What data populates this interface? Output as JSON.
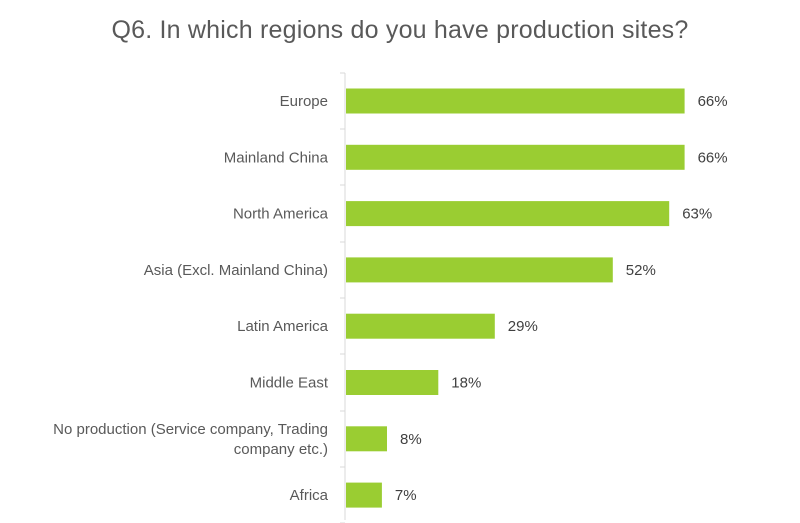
{
  "chart_data": {
    "type": "bar",
    "orientation": "horizontal",
    "title": "Q6. In which regions do you have production sites?",
    "categories": [
      "Europe",
      "Mainland China",
      "North America",
      "Asia (Excl. Mainland China)",
      "Latin America",
      "Middle East",
      "No production (Service company, Trading company etc.)",
      "Africa"
    ],
    "category_lines": [
      [
        "Europe"
      ],
      [
        "Mainland China"
      ],
      [
        "North America"
      ],
      [
        "Asia (Excl. Mainland China)"
      ],
      [
        "Latin America"
      ],
      [
        "Middle East"
      ],
      [
        "No production (Service company, Trading",
        "company etc.)"
      ],
      [
        "Africa"
      ]
    ],
    "values": [
      66,
      66,
      63,
      52,
      29,
      18,
      8,
      7
    ],
    "value_labels": [
      "66%",
      "66%",
      "63%",
      "52%",
      "29%",
      "18%",
      "8%",
      "7%"
    ],
    "xlim": [
      0,
      100
    ],
    "grid": false,
    "legend": "none",
    "colors": {
      "bar": "#9acd32",
      "axis": "#d9d9d9",
      "text": "#595959"
    }
  }
}
